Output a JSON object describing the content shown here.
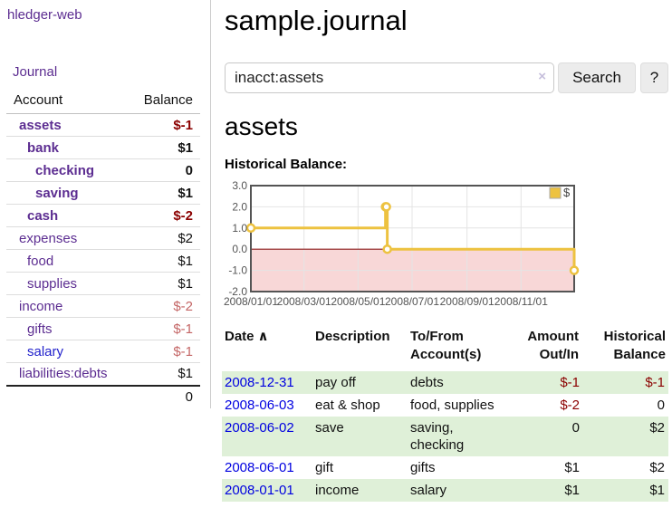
{
  "app": {
    "brand": "hledger-web"
  },
  "colors": {
    "link_purple": "#5c2d91",
    "link_blue": "#2222cc",
    "negative_strong": "#8b0000",
    "negative_soft": "#c46666",
    "row_shade_green": "#dff0d8",
    "chart_line_gold": "#edc240",
    "chart_negative_fill": "#f8d7d7",
    "chart_zero_line": "#8b1a1a",
    "chart_border": "#545454",
    "chart_grid": "#e4e4e4"
  },
  "sidebar": {
    "journal_link": "Journal",
    "accounts_table": {
      "headers": {
        "account": "Account",
        "balance": "Balance"
      },
      "rows": [
        {
          "name": "assets",
          "indent": 0,
          "bold": true,
          "color": "purple",
          "balance": "$-1",
          "balance_class": "neg-strong"
        },
        {
          "name": "bank",
          "indent": 1,
          "bold": true,
          "color": "purple",
          "balance": "$1",
          "balance_class": "plain"
        },
        {
          "name": "checking",
          "indent": 2,
          "bold": true,
          "color": "purple",
          "balance": "0",
          "balance_class": "plain"
        },
        {
          "name": "saving",
          "indent": 2,
          "bold": true,
          "color": "purple",
          "balance": "$1",
          "balance_class": "plain"
        },
        {
          "name": "cash",
          "indent": 1,
          "bold": true,
          "color": "purple",
          "balance": "$-2",
          "balance_class": "neg-strong"
        },
        {
          "name": "expenses",
          "indent": 0,
          "bold": false,
          "color": "purple",
          "balance": "$2",
          "balance_class": "plain"
        },
        {
          "name": "food",
          "indent": 1,
          "bold": false,
          "color": "purple",
          "balance": "$1",
          "balance_class": "plain"
        },
        {
          "name": "supplies",
          "indent": 1,
          "bold": false,
          "color": "purple",
          "balance": "$1",
          "balance_class": "plain"
        },
        {
          "name": "income",
          "indent": 0,
          "bold": false,
          "color": "purple",
          "balance": "$-2",
          "balance_class": "neg-soft"
        },
        {
          "name": "gifts",
          "indent": 1,
          "bold": false,
          "color": "purple",
          "balance": "$-1",
          "balance_class": "neg-soft"
        },
        {
          "name": "salary",
          "indent": 1,
          "bold": false,
          "color": "blue",
          "balance": "$-1",
          "balance_class": "neg-soft"
        },
        {
          "name": "liabilities:debts",
          "indent": 0,
          "bold": false,
          "color": "purple",
          "balance": "$1",
          "balance_class": "plain"
        }
      ],
      "total": "0"
    }
  },
  "main": {
    "title": "sample.journal",
    "search": {
      "value": "inacct:assets",
      "clear_icon": "×",
      "button": "Search",
      "help_button": "?"
    },
    "account_heading": "assets",
    "chart_heading": "Historical Balance:",
    "register": {
      "headers": {
        "date": "Date",
        "sort_icon": "∧",
        "description": "Description",
        "tofrom": "To/From Account(s)",
        "amount": "Amount Out/In",
        "balance": "Historical Balance"
      },
      "rows": [
        {
          "date": "2008-12-31",
          "description": "pay off",
          "tofrom": "debts",
          "amount": "$-1",
          "amount_neg": true,
          "balance": "$-1",
          "balance_neg": true,
          "shaded": true
        },
        {
          "date": "2008-06-03",
          "description": "eat & shop",
          "tofrom": "food, supplies",
          "amount": "$-2",
          "amount_neg": true,
          "balance": "0",
          "balance_neg": false,
          "shaded": false
        },
        {
          "date": "2008-06-02",
          "description": "save",
          "tofrom": "saving, checking",
          "amount": "0",
          "amount_neg": false,
          "balance": "$2",
          "balance_neg": false,
          "shaded": true
        },
        {
          "date": "2008-06-01",
          "description": "gift",
          "tofrom": "gifts",
          "amount": "$1",
          "amount_neg": false,
          "balance": "$2",
          "balance_neg": false,
          "shaded": false
        },
        {
          "date": "2008-01-01",
          "description": "income",
          "tofrom": "salary",
          "amount": "$1",
          "amount_neg": false,
          "balance": "$1",
          "balance_neg": false,
          "shaded": true
        }
      ]
    }
  },
  "chart_data": {
    "type": "line",
    "step": true,
    "title": "Historical Balance",
    "x_start": "2008-01-01",
    "x_end": "2008-12-31",
    "ylim": [
      -2,
      3
    ],
    "yticks": [
      "3.0",
      "2.0",
      "1.0",
      "0.0",
      "-1.0",
      "-2.0"
    ],
    "xtick_labels": [
      "2008/01/01",
      "2008/03/01",
      "2008/05/01",
      "2008/07/01",
      "2008/09/01",
      "2008/11/01"
    ],
    "xtick_dates": [
      "2008-01-01",
      "2008-03-01",
      "2008-05-01",
      "2008-07-01",
      "2008-09-01",
      "2008-11-01"
    ],
    "grid": true,
    "legend": {
      "label": "$",
      "position": "top-right"
    },
    "series": [
      {
        "name": "$",
        "points": [
          [
            "2008-01-01",
            1
          ],
          [
            "2008-06-01",
            2
          ],
          [
            "2008-06-02",
            2
          ],
          [
            "2008-06-03",
            0
          ],
          [
            "2008-12-31",
            -1
          ]
        ]
      }
    ]
  }
}
